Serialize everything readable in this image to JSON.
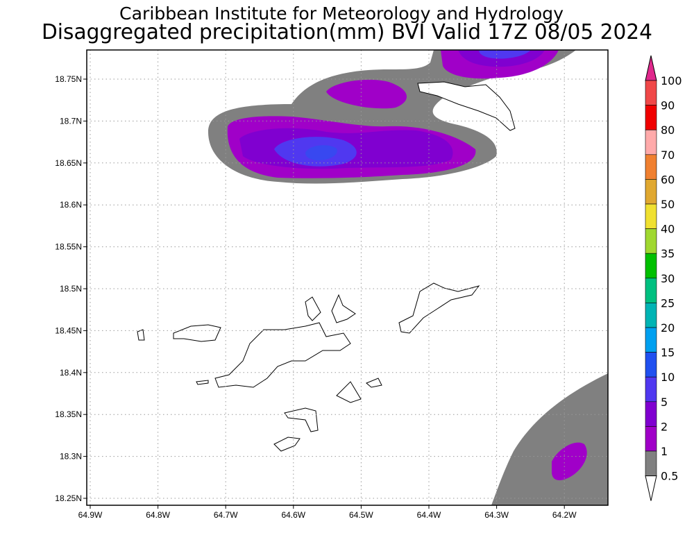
{
  "title": "Caribbean Institute for Meteorology and Hydrology",
  "subtitle": "Disaggregated precipitation(mm) BVI Valid 17Z 08/05 2024",
  "lat_ticks": [
    "18.75N",
    "18.7N",
    "18.65N",
    "18.6N",
    "18.55N",
    "18.5N",
    "18.45N",
    "18.4N",
    "18.35N",
    "18.3N",
    "18.25N"
  ],
  "lon_ticks": [
    "64.9W",
    "64.8W",
    "64.7W",
    "64.6W",
    "64.5W",
    "64.4W",
    "64.3W",
    "64.2W"
  ],
  "colorbar": {
    "labels": [
      "100",
      "90",
      "80",
      "70",
      "60",
      "50",
      "40",
      "35",
      "30",
      "25",
      "20",
      "15",
      "10",
      "5",
      "2",
      "1",
      "0.5"
    ],
    "above_color": "#e0288c",
    "colors": [
      "#f04848",
      "#f00000",
      "#ffaaaa",
      "#f08030",
      "#e0a830",
      "#f0e030",
      "#a0d830",
      "#00c000",
      "#00c080",
      "#00b4b4",
      "#00a0f0",
      "#2050f0",
      "#5038f0",
      "#8000d0",
      "#a000c8",
      "#808080"
    ],
    "below_color": "#ffffff"
  }
}
